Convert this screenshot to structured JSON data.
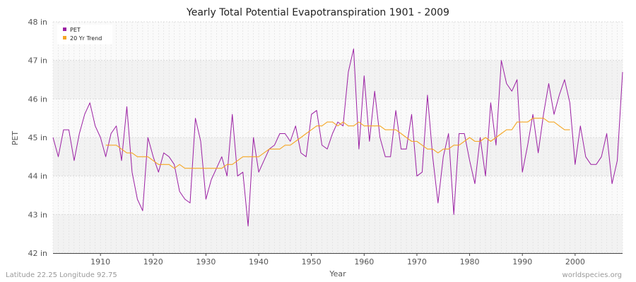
{
  "chart_data": {
    "type": "line",
    "title": "Yearly Total Potential Evapotranspiration 1901 - 2009",
    "xlabel": "Year",
    "ylabel": "PET",
    "xlim": [
      1901,
      2009
    ],
    "ylim": [
      42,
      48
    ],
    "x_ticks": [
      "1910",
      "1920",
      "1930",
      "1940",
      "1950",
      "1960",
      "1970",
      "1980",
      "1990",
      "2000"
    ],
    "y_ticks": [
      "42 in",
      "43 in",
      "44 in",
      "45 in",
      "46 in",
      "47 in",
      "48 in"
    ],
    "grid": true,
    "legend_position": "top-left",
    "series": [
      {
        "name": "PET",
        "color": "#9b1fa3",
        "start_year": 1901,
        "values": [
          45.0,
          44.5,
          45.2,
          45.2,
          44.4,
          45.1,
          45.6,
          45.9,
          45.3,
          45.0,
          44.5,
          45.1,
          45.3,
          44.4,
          45.8,
          44.1,
          43.4,
          43.1,
          45.0,
          44.5,
          44.1,
          44.6,
          44.5,
          44.3,
          43.6,
          43.4,
          43.3,
          45.5,
          44.9,
          43.4,
          43.9,
          44.2,
          44.5,
          44.0,
          45.6,
          44.0,
          44.1,
          42.7,
          45.0,
          44.1,
          44.4,
          44.7,
          44.8,
          45.1,
          45.1,
          44.9,
          45.3,
          44.6,
          44.5,
          45.6,
          45.7,
          44.8,
          44.7,
          45.1,
          45.4,
          45.3,
          46.7,
          47.3,
          44.7,
          46.6,
          44.9,
          46.2,
          45.0,
          44.5,
          44.5,
          45.7,
          44.7,
          44.7,
          45.6,
          44.0,
          44.1,
          46.1,
          44.5,
          43.3,
          44.5,
          45.1,
          43.0,
          45.1,
          45.1,
          44.4,
          43.8,
          45.0,
          44.0,
          45.9,
          44.8,
          47.0,
          46.4,
          46.2,
          46.5,
          44.1,
          44.8,
          45.6,
          44.6,
          45.6,
          46.4,
          45.6,
          46.1,
          46.5,
          45.9,
          44.3,
          45.3,
          44.5,
          44.3,
          44.3,
          44.5,
          45.1,
          43.8,
          44.4,
          46.7
        ]
      },
      {
        "name": "20 Yr Trend",
        "color": "#f5a623",
        "start_year": 1911,
        "values": [
          44.8,
          44.8,
          44.8,
          44.7,
          44.6,
          44.6,
          44.5,
          44.5,
          44.5,
          44.4,
          44.3,
          44.3,
          44.3,
          44.2,
          44.3,
          44.2,
          44.2,
          44.2,
          44.2,
          44.2,
          44.2,
          44.2,
          44.2,
          44.3,
          44.3,
          44.4,
          44.5,
          44.5,
          44.5,
          44.5,
          44.6,
          44.7,
          44.7,
          44.7,
          44.8,
          44.8,
          44.9,
          45.0,
          45.1,
          45.2,
          45.3,
          45.3,
          45.4,
          45.4,
          45.3,
          45.4,
          45.3,
          45.3,
          45.4,
          45.3,
          45.3,
          45.3,
          45.3,
          45.2,
          45.2,
          45.2,
          45.1,
          45.0,
          44.9,
          44.9,
          44.8,
          44.7,
          44.7,
          44.6,
          44.7,
          44.7,
          44.8,
          44.8,
          44.9,
          45.0,
          44.9,
          44.9,
          45.0,
          44.9,
          45.0,
          45.1,
          45.2,
          45.2,
          45.4,
          45.4,
          45.4,
          45.5,
          45.5,
          45.5,
          45.4,
          45.4,
          45.3,
          45.2,
          45.2
        ]
      }
    ]
  },
  "footer": {
    "left": "Latitude 22.25 Longitude 92.75",
    "right": "worldspecies.org"
  }
}
